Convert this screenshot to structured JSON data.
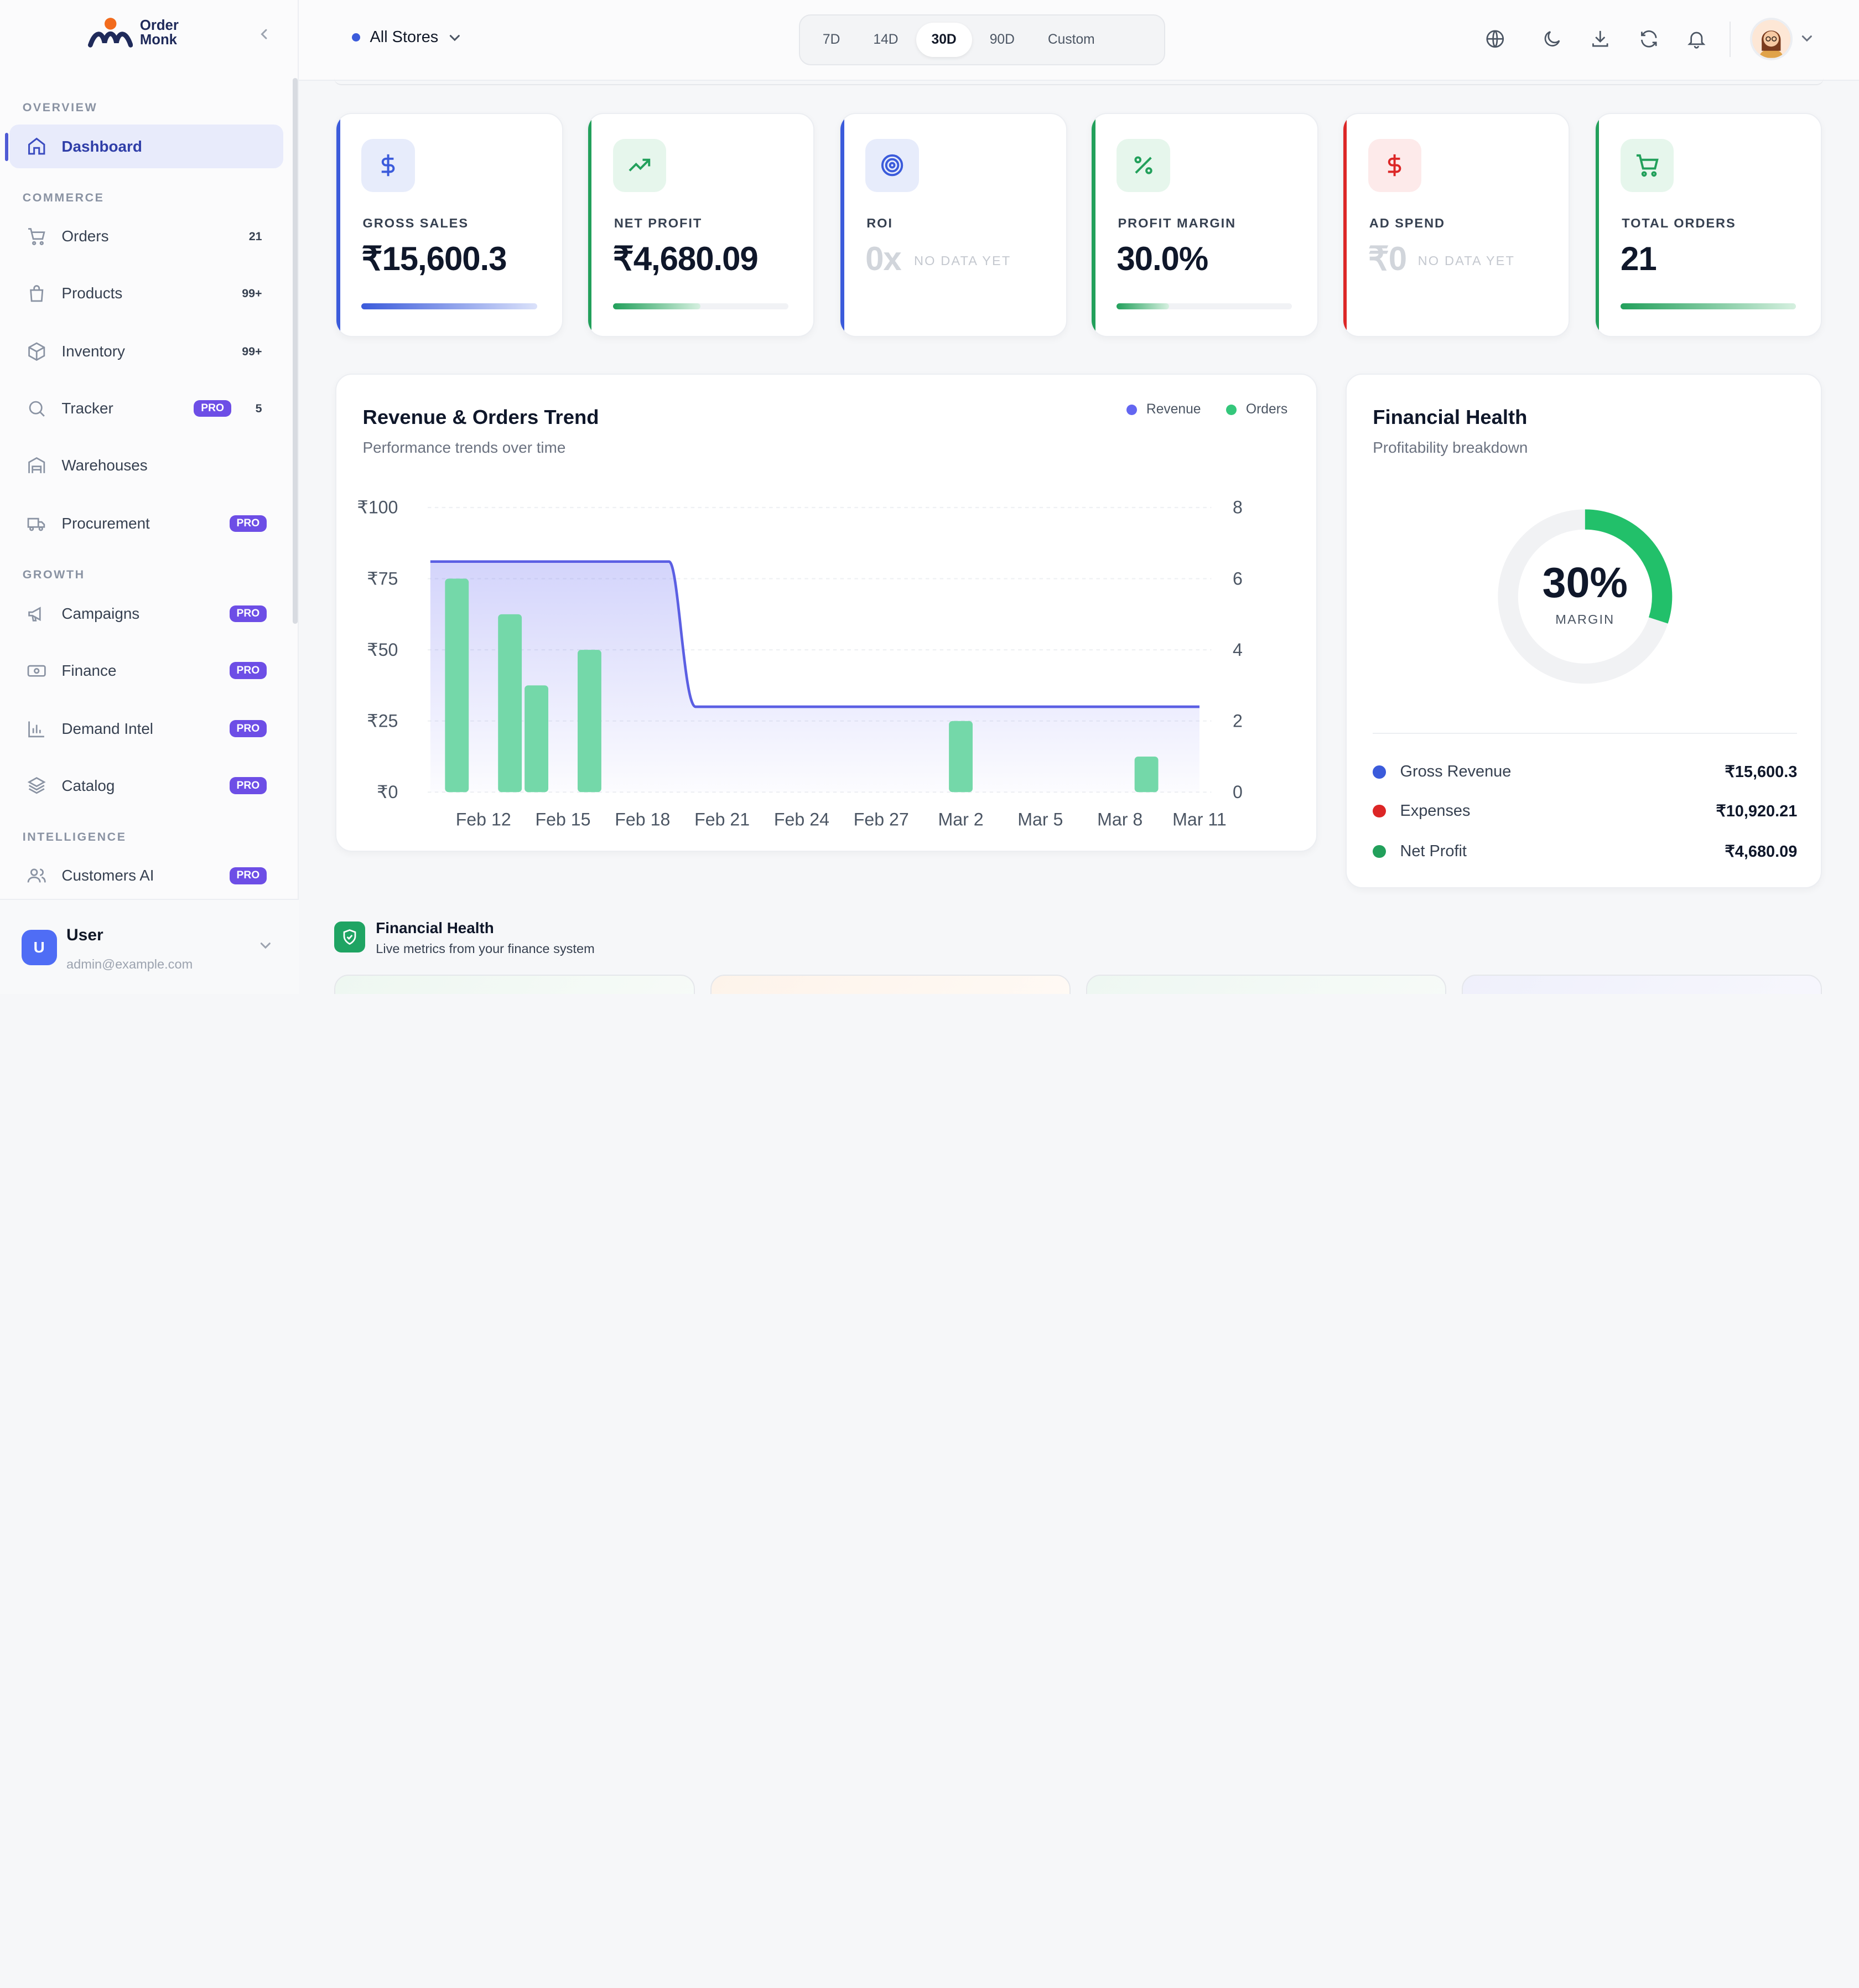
{
  "brand": {
    "name_line1": "Order",
    "name_line2": "Monk"
  },
  "sidebar": {
    "sections": [
      {
        "label": "OVERVIEW"
      },
      {
        "label": "COMMERCE"
      },
      {
        "label": "GROWTH"
      },
      {
        "label": "INTELLIGENCE"
      }
    ],
    "items": [
      {
        "label": "Dashboard",
        "icon": "home-icon"
      },
      {
        "label": "Orders",
        "icon": "cart-icon",
        "count": "21"
      },
      {
        "label": "Products",
        "icon": "bag-icon",
        "count": "99+"
      },
      {
        "label": "Inventory",
        "icon": "box-icon",
        "count": "99+"
      },
      {
        "label": "Tracker",
        "icon": "search-icon",
        "pro": "PRO",
        "count": "5"
      },
      {
        "label": "Warehouses",
        "icon": "warehouse-icon"
      },
      {
        "label": "Procurement",
        "icon": "truck-icon",
        "pro": "PRO"
      },
      {
        "label": "Campaigns",
        "icon": "megaphone-icon",
        "pro": "PRO"
      },
      {
        "label": "Finance",
        "icon": "banknote-icon",
        "pro": "PRO"
      },
      {
        "label": "Demand Intel",
        "icon": "bar-chart-icon",
        "pro": "PRO"
      },
      {
        "label": "Catalog",
        "icon": "layers-icon",
        "pro": "PRO"
      },
      {
        "label": "Customers AI",
        "icon": "users-icon",
        "pro": "PRO"
      }
    ],
    "user": {
      "initial": "U",
      "name": "User",
      "email": "admin@example.com"
    }
  },
  "header": {
    "store_label": "All Stores",
    "ranges": [
      "7D",
      "14D",
      "30D",
      "90D",
      "Custom"
    ],
    "active_range": "30D"
  },
  "kpis": [
    {
      "label": "GROSS SALES",
      "value": "₹15,600.3",
      "icon": "dollar-icon",
      "color": "#3b5bdb",
      "progress": 1.0
    },
    {
      "label": "NET PROFIT",
      "value": "₹4,680.09",
      "icon": "trending-up-icon",
      "color": "#22a05b",
      "progress": 0.5
    },
    {
      "label": "ROI",
      "value": "0x",
      "nodata": "NO DATA YET",
      "icon": "target-icon",
      "color": "#3b5bdb"
    },
    {
      "label": "PROFIT MARGIN",
      "value": "30.0%",
      "icon": "percent-icon",
      "color": "#22a05b",
      "progress": 0.3
    },
    {
      "label": "AD SPEND",
      "value": "₹0",
      "nodata": "NO DATA YET",
      "icon": "dollar-icon",
      "color": "#dc2626"
    },
    {
      "label": "TOTAL ORDERS",
      "value": "21",
      "icon": "cart-icon",
      "color": "#22a05b",
      "progress": 1.0
    }
  ],
  "revenue_card": {
    "title": "Revenue & Orders Trend",
    "subtitle": "Performance trends over time",
    "legend": [
      {
        "name": "Revenue",
        "color": "#6366f1"
      },
      {
        "name": "Orders",
        "color": "#34c77b"
      }
    ]
  },
  "chart_data": {
    "type": "bar",
    "x_ticks": [
      "Feb 12",
      "Feb 15",
      "Feb 18",
      "Feb 21",
      "Feb 24",
      "Feb 27",
      "Mar 2",
      "Mar 5",
      "Mar 8",
      "Mar 11"
    ],
    "y_left_ticks": [
      "₹0",
      "₹25",
      "₹50",
      "₹75",
      "₹100"
    ],
    "y_left_lim": [
      0,
      100
    ],
    "y_right_ticks": [
      "0",
      "2",
      "4",
      "6",
      "8"
    ],
    "y_right_lim": [
      0,
      8
    ],
    "series": [
      {
        "name": "Orders",
        "type": "bar",
        "axis": "right",
        "points": [
          {
            "x": "Feb 11",
            "y": 6
          },
          {
            "x": "Feb 13",
            "y": 5
          },
          {
            "x": "Feb 14",
            "y": 3
          },
          {
            "x": "Feb 16",
            "y": 4
          },
          {
            "x": "Mar 2",
            "y": 2
          },
          {
            "x": "Mar 9",
            "y": 1
          }
        ]
      },
      {
        "name": "Revenue",
        "type": "area",
        "axis": "left",
        "points": [
          {
            "x": "Feb 10",
            "y": 81
          },
          {
            "x": "Feb 19",
            "y": 81
          },
          {
            "x": "Feb 20",
            "y": 30
          },
          {
            "x": "Mar 11",
            "y": 30
          }
        ]
      }
    ]
  },
  "financial_health": {
    "title": "Financial Health",
    "subtitle": "Profitability breakdown",
    "margin_value": "30%",
    "margin_label": "MARGIN",
    "margin_fraction": 0.3,
    "rows": [
      {
        "label": "Gross Revenue",
        "value": "₹15,600.3",
        "color": "#3b5bdb"
      },
      {
        "label": "Expenses",
        "value": "₹10,920.21",
        "color": "#dc2626"
      },
      {
        "label": "Net Profit",
        "value": "₹4,680.09",
        "color": "#22a05b"
      }
    ]
  },
  "bottom": {
    "title": "Financial Health",
    "subtitle": "Live metrics from your finance system"
  }
}
